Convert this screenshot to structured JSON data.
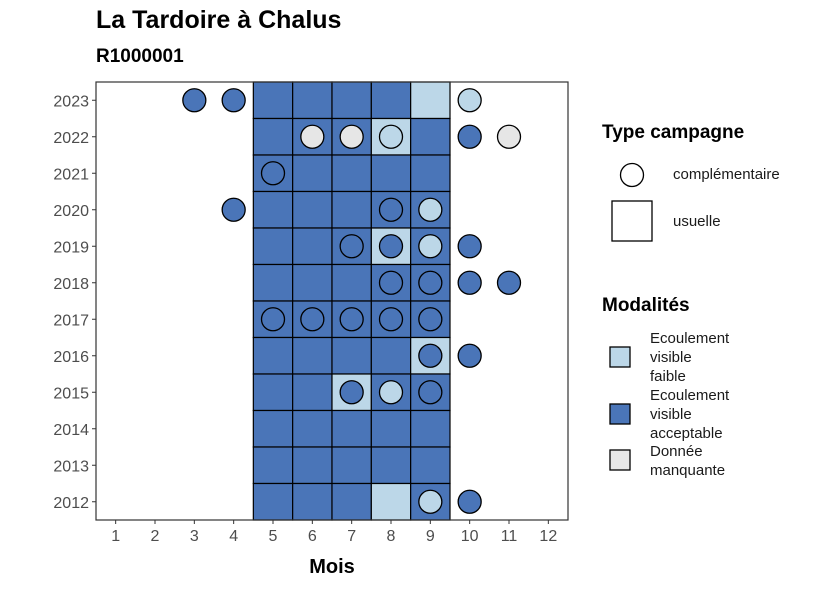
{
  "chart_data": {
    "type": "heatmap",
    "title": "La Tardoire à Chalus",
    "subtitle": "R1000001",
    "xlabel": "Mois",
    "ylabel": "",
    "x_ticks": [
      "1",
      "2",
      "3",
      "4",
      "5",
      "6",
      "7",
      "8",
      "9",
      "10",
      "11",
      "12"
    ],
    "y_ticks": [
      "2012",
      "2013",
      "2014",
      "2015",
      "2016",
      "2017",
      "2018",
      "2019",
      "2020",
      "2021",
      "2022",
      "2023"
    ],
    "xlim": [
      0.5,
      12.5
    ],
    "ylim": [
      2011.5,
      2023.5
    ],
    "colors": {
      "faible": "#BCD7E8",
      "acceptable": "#4A75B8",
      "manquante": "#E6E6E6"
    },
    "legend_type": {
      "title": "Type campagne",
      "items": [
        {
          "shape": "circle",
          "label": "complémentaire"
        },
        {
          "shape": "square",
          "label": "usuelle"
        }
      ]
    },
    "legend_modalites": {
      "title": "Modalités",
      "items": [
        {
          "key": "faible",
          "label": "Ecoulement\nvisible\nfaible"
        },
        {
          "key": "acceptable",
          "label": "Ecoulement\nvisible\nacceptable"
        },
        {
          "key": "manquante",
          "label": "Donnée\nmanquante"
        }
      ]
    },
    "squares": [
      {
        "year": 2023,
        "month": 5,
        "mod": "acceptable"
      },
      {
        "year": 2023,
        "month": 6,
        "mod": "acceptable"
      },
      {
        "year": 2023,
        "month": 7,
        "mod": "acceptable"
      },
      {
        "year": 2023,
        "month": 8,
        "mod": "acceptable"
      },
      {
        "year": 2023,
        "month": 9,
        "mod": "faible"
      },
      {
        "year": 2022,
        "month": 5,
        "mod": "acceptable"
      },
      {
        "year": 2022,
        "month": 6,
        "mod": "acceptable"
      },
      {
        "year": 2022,
        "month": 7,
        "mod": "acceptable"
      },
      {
        "year": 2022,
        "month": 8,
        "mod": "faible"
      },
      {
        "year": 2022,
        "month": 9,
        "mod": "acceptable"
      },
      {
        "year": 2021,
        "month": 5,
        "mod": "acceptable"
      },
      {
        "year": 2021,
        "month": 6,
        "mod": "acceptable"
      },
      {
        "year": 2021,
        "month": 7,
        "mod": "acceptable"
      },
      {
        "year": 2021,
        "month": 8,
        "mod": "acceptable"
      },
      {
        "year": 2021,
        "month": 9,
        "mod": "acceptable"
      },
      {
        "year": 2020,
        "month": 5,
        "mod": "acceptable"
      },
      {
        "year": 2020,
        "month": 6,
        "mod": "acceptable"
      },
      {
        "year": 2020,
        "month": 7,
        "mod": "acceptable"
      },
      {
        "year": 2020,
        "month": 8,
        "mod": "acceptable"
      },
      {
        "year": 2020,
        "month": 9,
        "mod": "acceptable"
      },
      {
        "year": 2019,
        "month": 5,
        "mod": "acceptable"
      },
      {
        "year": 2019,
        "month": 6,
        "mod": "acceptable"
      },
      {
        "year": 2019,
        "month": 7,
        "mod": "acceptable"
      },
      {
        "year": 2019,
        "month": 8,
        "mod": "faible"
      },
      {
        "year": 2019,
        "month": 9,
        "mod": "acceptable"
      },
      {
        "year": 2018,
        "month": 5,
        "mod": "acceptable"
      },
      {
        "year": 2018,
        "month": 6,
        "mod": "acceptable"
      },
      {
        "year": 2018,
        "month": 7,
        "mod": "acceptable"
      },
      {
        "year": 2018,
        "month": 8,
        "mod": "acceptable"
      },
      {
        "year": 2018,
        "month": 9,
        "mod": "acceptable"
      },
      {
        "year": 2017,
        "month": 5,
        "mod": "acceptable"
      },
      {
        "year": 2017,
        "month": 6,
        "mod": "acceptable"
      },
      {
        "year": 2017,
        "month": 7,
        "mod": "acceptable"
      },
      {
        "year": 2017,
        "month": 8,
        "mod": "acceptable"
      },
      {
        "year": 2017,
        "month": 9,
        "mod": "acceptable"
      },
      {
        "year": 2016,
        "month": 5,
        "mod": "acceptable"
      },
      {
        "year": 2016,
        "month": 6,
        "mod": "acceptable"
      },
      {
        "year": 2016,
        "month": 7,
        "mod": "acceptable"
      },
      {
        "year": 2016,
        "month": 8,
        "mod": "acceptable"
      },
      {
        "year": 2016,
        "month": 9,
        "mod": "faible"
      },
      {
        "year": 2015,
        "month": 5,
        "mod": "acceptable"
      },
      {
        "year": 2015,
        "month": 6,
        "mod": "acceptable"
      },
      {
        "year": 2015,
        "month": 7,
        "mod": "faible"
      },
      {
        "year": 2015,
        "month": 8,
        "mod": "acceptable"
      },
      {
        "year": 2015,
        "month": 9,
        "mod": "acceptable"
      },
      {
        "year": 2014,
        "month": 5,
        "mod": "acceptable"
      },
      {
        "year": 2014,
        "month": 6,
        "mod": "acceptable"
      },
      {
        "year": 2014,
        "month": 7,
        "mod": "acceptable"
      },
      {
        "year": 2014,
        "month": 8,
        "mod": "acceptable"
      },
      {
        "year": 2014,
        "month": 9,
        "mod": "acceptable"
      },
      {
        "year": 2013,
        "month": 5,
        "mod": "acceptable"
      },
      {
        "year": 2013,
        "month": 6,
        "mod": "acceptable"
      },
      {
        "year": 2013,
        "month": 7,
        "mod": "acceptable"
      },
      {
        "year": 2013,
        "month": 8,
        "mod": "acceptable"
      },
      {
        "year": 2013,
        "month": 9,
        "mod": "acceptable"
      },
      {
        "year": 2012,
        "month": 5,
        "mod": "acceptable"
      },
      {
        "year": 2012,
        "month": 6,
        "mod": "acceptable"
      },
      {
        "year": 2012,
        "month": 7,
        "mod": "acceptable"
      },
      {
        "year": 2012,
        "month": 8,
        "mod": "faible"
      },
      {
        "year": 2012,
        "month": 9,
        "mod": "acceptable"
      }
    ],
    "circles": [
      {
        "year": 2023,
        "month": 3,
        "mod": "acceptable"
      },
      {
        "year": 2023,
        "month": 4,
        "mod": "acceptable"
      },
      {
        "year": 2023,
        "month": 10,
        "mod": "faible"
      },
      {
        "year": 2022,
        "month": 6,
        "mod": "manquante"
      },
      {
        "year": 2022,
        "month": 7,
        "mod": "manquante"
      },
      {
        "year": 2022,
        "month": 8,
        "mod": "faible"
      },
      {
        "year": 2022,
        "month": 10,
        "mod": "acceptable"
      },
      {
        "year": 2022,
        "month": 11,
        "mod": "manquante"
      },
      {
        "year": 2021,
        "month": 5,
        "mod": "acceptable"
      },
      {
        "year": 2020,
        "month": 4,
        "mod": "acceptable"
      },
      {
        "year": 2020,
        "month": 8,
        "mod": "acceptable"
      },
      {
        "year": 2020,
        "month": 9,
        "mod": "faible"
      },
      {
        "year": 2019,
        "month": 7,
        "mod": "acceptable"
      },
      {
        "year": 2019,
        "month": 8,
        "mod": "acceptable"
      },
      {
        "year": 2019,
        "month": 9,
        "mod": "faible"
      },
      {
        "year": 2019,
        "month": 10,
        "mod": "acceptable"
      },
      {
        "year": 2018,
        "month": 8,
        "mod": "acceptable"
      },
      {
        "year": 2018,
        "month": 9,
        "mod": "acceptable"
      },
      {
        "year": 2018,
        "month": 10,
        "mod": "acceptable"
      },
      {
        "year": 2018,
        "month": 11,
        "mod": "acceptable"
      },
      {
        "year": 2017,
        "month": 5,
        "mod": "acceptable"
      },
      {
        "year": 2017,
        "month": 6,
        "mod": "acceptable"
      },
      {
        "year": 2017,
        "month": 7,
        "mod": "acceptable"
      },
      {
        "year": 2017,
        "month": 8,
        "mod": "acceptable"
      },
      {
        "year": 2017,
        "month": 9,
        "mod": "acceptable"
      },
      {
        "year": 2016,
        "month": 9,
        "mod": "acceptable"
      },
      {
        "year": 2016,
        "month": 10,
        "mod": "acceptable"
      },
      {
        "year": 2015,
        "month": 7,
        "mod": "acceptable"
      },
      {
        "year": 2015,
        "month": 8,
        "mod": "faible"
      },
      {
        "year": 2015,
        "month": 9,
        "mod": "acceptable"
      },
      {
        "year": 2012,
        "month": 9,
        "mod": "faible"
      },
      {
        "year": 2012,
        "month": 10,
        "mod": "acceptable"
      }
    ]
  }
}
